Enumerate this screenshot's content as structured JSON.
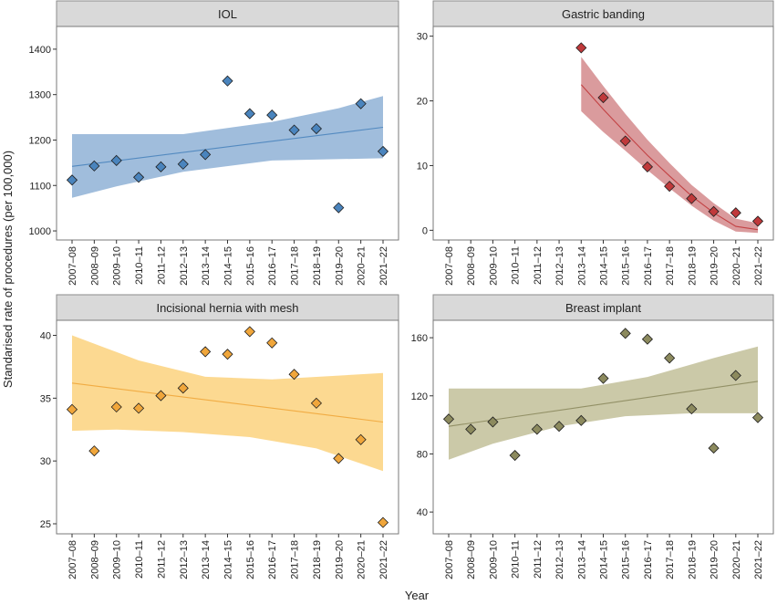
{
  "figure": {
    "ylabel": "Standarised rate of procedures (per 100,000)",
    "xlabel": "Year"
  },
  "chart_data": [
    {
      "type": "scatter",
      "title": "IOL",
      "color": "#4a84bd",
      "band_color": "#8fb1d6",
      "categories": [
        "2007–08",
        "2008–09",
        "2009–10",
        "2010–11",
        "2011–12",
        "2012–13",
        "2013–14",
        "2014–15",
        "2015–16",
        "2016–17",
        "2017–18",
        "2018–19",
        "2019–20",
        "2020–21",
        "2021–22"
      ],
      "values": [
        1112,
        1143,
        1155,
        1118,
        1141,
        1147,
        1168,
        1330,
        1258,
        1255,
        1222,
        1225,
        1051,
        1280,
        1175
      ],
      "fit": {
        "x_start": 0,
        "y_start": 1142,
        "x_end": 14,
        "y_end": 1228
      },
      "band": {
        "upper": [
          [
            0,
            1213
          ],
          [
            5,
            1213
          ],
          [
            9,
            1240
          ],
          [
            12,
            1270
          ],
          [
            14,
            1297
          ]
        ],
        "lower": [
          [
            0,
            1073
          ],
          [
            2,
            1098
          ],
          [
            5,
            1130
          ],
          [
            9,
            1155
          ],
          [
            14,
            1160
          ]
        ]
      },
      "ylim": [
        980,
        1450
      ],
      "yticks": [
        1000,
        1100,
        1200,
        1300,
        1400
      ],
      "ytick_labels": [
        "1000",
        "1100",
        "1200",
        "1300",
        "1400"
      ]
    },
    {
      "type": "scatter",
      "title": "Gastric banding",
      "color": "#c0393b",
      "band_color": "#d48a8c",
      "categories": [
        "2007–08",
        "2008–09",
        "2009–10",
        "2010–11",
        "2011–12",
        "2012–13",
        "2013–14",
        "2014–15",
        "2015–16",
        "2016–17",
        "2017–18",
        "2018–19",
        "2019–20",
        "2020–21",
        "2021–22"
      ],
      "values": [
        null,
        null,
        null,
        null,
        null,
        null,
        28.2,
        20.5,
        13.8,
        9.8,
        6.8,
        4.9,
        2.9,
        2.7,
        1.4
      ],
      "fit": {
        "points": [
          [
            6,
            22.5
          ],
          [
            7,
            18.7
          ],
          [
            8,
            15.1
          ],
          [
            9,
            11.6
          ],
          [
            10,
            8.4
          ],
          [
            11,
            5.3
          ],
          [
            12,
            2.7
          ],
          [
            13,
            0.6
          ],
          [
            14,
            0.1
          ]
        ]
      },
      "band": {
        "upper": [
          [
            6,
            26.8
          ],
          [
            7,
            22.3
          ],
          [
            8,
            18.0
          ],
          [
            9,
            14.0
          ],
          [
            10,
            10.4
          ],
          [
            11,
            7.0
          ],
          [
            12,
            4.2
          ],
          [
            13,
            1.8
          ],
          [
            14,
            1.1
          ]
        ],
        "lower": [
          [
            6,
            18.4
          ],
          [
            7,
            15.2
          ],
          [
            8,
            12.3
          ],
          [
            9,
            9.3
          ],
          [
            10,
            6.5
          ],
          [
            11,
            3.8
          ],
          [
            12,
            1.5
          ],
          [
            13,
            -0.2
          ],
          [
            14,
            -0.4
          ]
        ]
      },
      "ylim": [
        -1.5,
        31.5
      ],
      "yticks": [
        0,
        10,
        20,
        30
      ],
      "ytick_labels": [
        "0",
        "10",
        "20",
        "30"
      ]
    },
    {
      "type": "scatter",
      "title": "Incisional hernia with mesh",
      "color": "#f0a63b",
      "band_color": "#fcd27e",
      "categories": [
        "2007–08",
        "2008–09",
        "2009–10",
        "2010–11",
        "2011–12",
        "2012–13",
        "2013–14",
        "2014–15",
        "2015–16",
        "2016–17",
        "2017–18",
        "2018–19",
        "2019–20",
        "2020–21",
        "2021–22"
      ],
      "values": [
        34.1,
        30.8,
        34.3,
        34.2,
        35.2,
        35.8,
        38.7,
        38.5,
        40.3,
        39.4,
        36.9,
        34.6,
        30.2,
        31.7,
        25.1
      ],
      "fit": {
        "x_start": 0,
        "y_start": 36.2,
        "x_end": 14,
        "y_end": 33.1
      },
      "band": {
        "upper": [
          [
            0,
            40.0
          ],
          [
            3,
            38.0
          ],
          [
            6,
            36.7
          ],
          [
            9,
            36.5
          ],
          [
            12,
            36.8
          ],
          [
            14,
            37.0
          ]
        ],
        "lower": [
          [
            0,
            32.4
          ],
          [
            2,
            32.5
          ],
          [
            5,
            32.3
          ],
          [
            8,
            31.9
          ],
          [
            11,
            31.0
          ],
          [
            14,
            29.2
          ]
        ]
      },
      "ylim": [
        24.2,
        41.2
      ],
      "yticks": [
        25,
        30,
        35,
        40
      ],
      "ytick_labels": [
        "25",
        "30",
        "35",
        "40"
      ]
    },
    {
      "type": "scatter",
      "title": "Breast implant",
      "color": "#8c8a5e",
      "band_color": "#c2bf99",
      "categories": [
        "2007–08",
        "2008–09",
        "2009–10",
        "2010–11",
        "2011–12",
        "2012–13",
        "2013–14",
        "2014–15",
        "2015–16",
        "2016–17",
        "2017–18",
        "2018–19",
        "2019–20",
        "2020–21",
        "2021–22"
      ],
      "values": [
        104,
        97,
        102,
        79,
        97,
        99,
        103,
        132,
        163,
        159,
        146,
        111,
        84,
        134,
        105
      ],
      "fit": {
        "x_start": 0,
        "y_start": 99,
        "x_end": 14,
        "y_end": 130
      },
      "band": {
        "upper": [
          [
            0,
            125
          ],
          [
            3,
            125
          ],
          [
            6,
            125
          ],
          [
            9,
            133
          ],
          [
            12,
            146
          ],
          [
            14,
            154
          ]
        ],
        "lower": [
          [
            0,
            76
          ],
          [
            2,
            87
          ],
          [
            5,
            99
          ],
          [
            8,
            106
          ],
          [
            11,
            108
          ],
          [
            14,
            108
          ]
        ]
      },
      "ylim": [
        25,
        172
      ],
      "yticks": [
        40,
        80,
        120,
        160
      ],
      "ytick_labels": [
        "40",
        "80",
        "120",
        "160"
      ]
    }
  ]
}
